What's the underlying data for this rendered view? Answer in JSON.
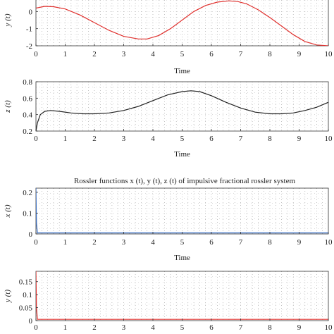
{
  "figure_title": "Rossler functions x (t), y (t), z (t) of impulsive fractional rossler system",
  "chart_data": [
    {
      "type": "line",
      "ylabel": "y (t)",
      "xlabel": "Time",
      "xlim": [
        0,
        10
      ],
      "ylim": [
        -2,
        1
      ],
      "xticks": [
        "0",
        "1",
        "2",
        "3",
        "4",
        "5",
        "6",
        "7",
        "8",
        "9",
        "10"
      ],
      "yticks": [
        "-2",
        "-1",
        "0"
      ],
      "grid": true,
      "color": "#e0312e",
      "series": [
        {
          "x": [
            0,
            0.3,
            0.6,
            1.0,
            1.5,
            2.0,
            2.5,
            3.0,
            3.5,
            3.8,
            4.2,
            4.6,
            5.0,
            5.4,
            5.8,
            6.2,
            6.6,
            6.9,
            7.2,
            7.6,
            8.0,
            8.4,
            8.8,
            9.2,
            9.6,
            10
          ],
          "y": [
            0.2,
            0.3,
            0.28,
            0.15,
            -0.2,
            -0.65,
            -1.1,
            -1.45,
            -1.6,
            -1.6,
            -1.4,
            -1.0,
            -0.5,
            0.0,
            0.35,
            0.55,
            0.62,
            0.58,
            0.45,
            0.1,
            -0.35,
            -0.85,
            -1.35,
            -1.75,
            -1.95,
            -2.0
          ]
        }
      ]
    },
    {
      "type": "line",
      "ylabel": "z (t)",
      "xlabel": "Time",
      "xlim": [
        0,
        10
      ],
      "ylim": [
        0.2,
        0.8
      ],
      "xticks": [
        "0",
        "1",
        "2",
        "3",
        "4",
        "5",
        "6",
        "7",
        "8",
        "9",
        "10"
      ],
      "yticks": [
        "0.2",
        "0.4",
        "0.6",
        "0.8"
      ],
      "grid": true,
      "color": "#222222",
      "series": [
        {
          "x": [
            0,
            0.05,
            0.15,
            0.3,
            0.5,
            0.8,
            1.2,
            1.6,
            2.0,
            2.5,
            3.0,
            3.5,
            4.0,
            4.5,
            5.0,
            5.3,
            5.6,
            6.0,
            6.5,
            7.0,
            7.5,
            8.0,
            8.4,
            8.8,
            9.2,
            9.6,
            10
          ],
          "y": [
            0.2,
            0.3,
            0.4,
            0.44,
            0.45,
            0.44,
            0.42,
            0.41,
            0.41,
            0.42,
            0.45,
            0.5,
            0.57,
            0.64,
            0.68,
            0.69,
            0.68,
            0.63,
            0.55,
            0.48,
            0.43,
            0.41,
            0.41,
            0.42,
            0.45,
            0.49,
            0.55
          ]
        }
      ]
    },
    {
      "type": "line",
      "ylabel": "x (t)",
      "xlabel": "Time",
      "xlim": [
        0,
        10
      ],
      "ylim": [
        0,
        0.22
      ],
      "xticks": [
        "0",
        "1",
        "2",
        "3",
        "4",
        "5",
        "6",
        "7",
        "8",
        "9",
        "10"
      ],
      "yticks": [
        "0",
        "0.1",
        "0.2"
      ],
      "grid": true,
      "color": "#3a6fc4",
      "series": [
        {
          "x": [
            0,
            0.0,
            0.02,
            0.05,
            10
          ],
          "y": [
            0.22,
            0.22,
            0.05,
            0.005,
            0.005
          ]
        }
      ]
    },
    {
      "type": "line",
      "ylabel": "y (t)",
      "xlabel": "",
      "xlim": [
        0,
        10
      ],
      "ylim": [
        0,
        0.19
      ],
      "xticks": [
        "0",
        "1",
        "2",
        "3",
        "4",
        "5",
        "6",
        "7",
        "8",
        "9",
        "10"
      ],
      "yticks": [
        "0",
        "0.05",
        "0.1",
        "0.15"
      ],
      "grid": true,
      "color": "#e0312e",
      "series": [
        {
          "x": [
            0,
            0.0,
            0.02,
            0.05,
            10
          ],
          "y": [
            0.19,
            0.19,
            0.05,
            0.005,
            0.005
          ]
        }
      ]
    }
  ]
}
